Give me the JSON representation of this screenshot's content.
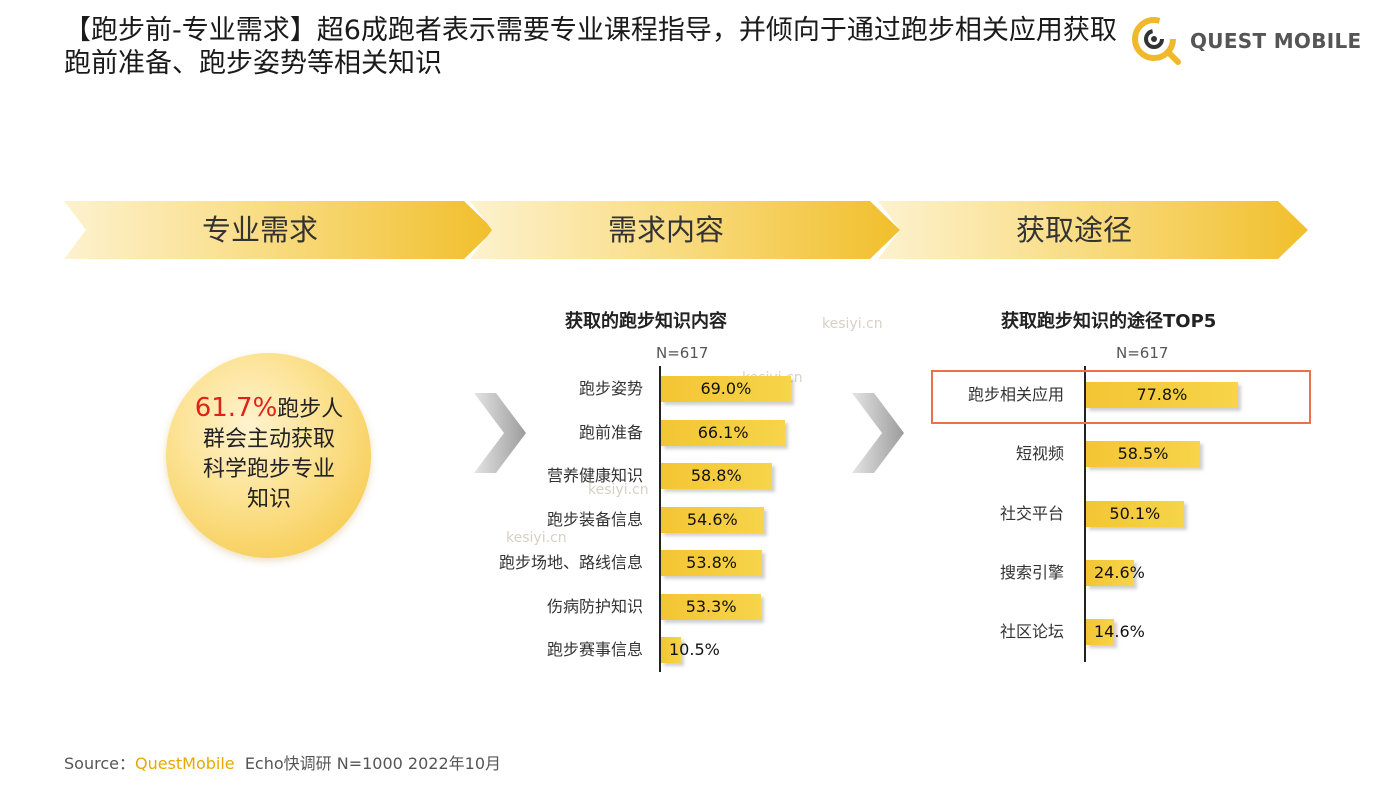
{
  "title": "【跑步前-专业需求】超6成跑者表示需要专业课程指导，并倾向于通过跑步相关应用获取跑前准备、跑步姿势等相关知识",
  "logo": {
    "text": "QUEST MOBILE",
    "icon": "questmobile-logo-icon"
  },
  "banners": [
    {
      "label": "专业需求"
    },
    {
      "label": "需求内容"
    },
    {
      "label": "获取途径"
    }
  ],
  "stat": {
    "value": "61.7%",
    "text": "跑步人群会主动获取科学跑步专业知识"
  },
  "watermark": "kesiyi.cn",
  "chart_data": [
    {
      "type": "bar",
      "orientation": "horizontal",
      "title": "获取的跑步知识内容",
      "n_label": "N=617",
      "categories": [
        "跑步姿势",
        "跑前准备",
        "营养健康知识",
        "跑步装备信息",
        "跑步场地、路线信息",
        "伤病防护知识",
        "跑步赛事信息"
      ],
      "values": [
        69.0,
        66.1,
        58.8,
        54.6,
        53.8,
        53.3,
        10.5
      ],
      "value_labels": [
        "69.0%",
        "66.1%",
        "58.8%",
        "54.6%",
        "53.8%",
        "53.3%",
        "10.5%"
      ],
      "unit": "%",
      "color": "#f3c534",
      "xlim": [
        0,
        100
      ],
      "grid": false
    },
    {
      "type": "bar",
      "orientation": "horizontal",
      "title": "获取跑步知识的途径TOP5",
      "n_label": "N=617",
      "categories": [
        "跑步相关应用",
        "短视频",
        "社交平台",
        "搜索引擎",
        "社区论坛"
      ],
      "values": [
        77.8,
        58.5,
        50.1,
        24.6,
        14.6
      ],
      "value_labels": [
        "77.8%",
        "58.5%",
        "50.1%",
        "24.6%",
        "14.6%"
      ],
      "unit": "%",
      "color": "#f3c534",
      "highlight_index": 0,
      "highlight_color": "#e8734a",
      "xlim": [
        0,
        100
      ],
      "grid": false
    }
  ],
  "source": {
    "prefix": "Source：",
    "brand": "QuestMobile",
    "rest": "Echo快调研 N=1000 2022年10月"
  }
}
